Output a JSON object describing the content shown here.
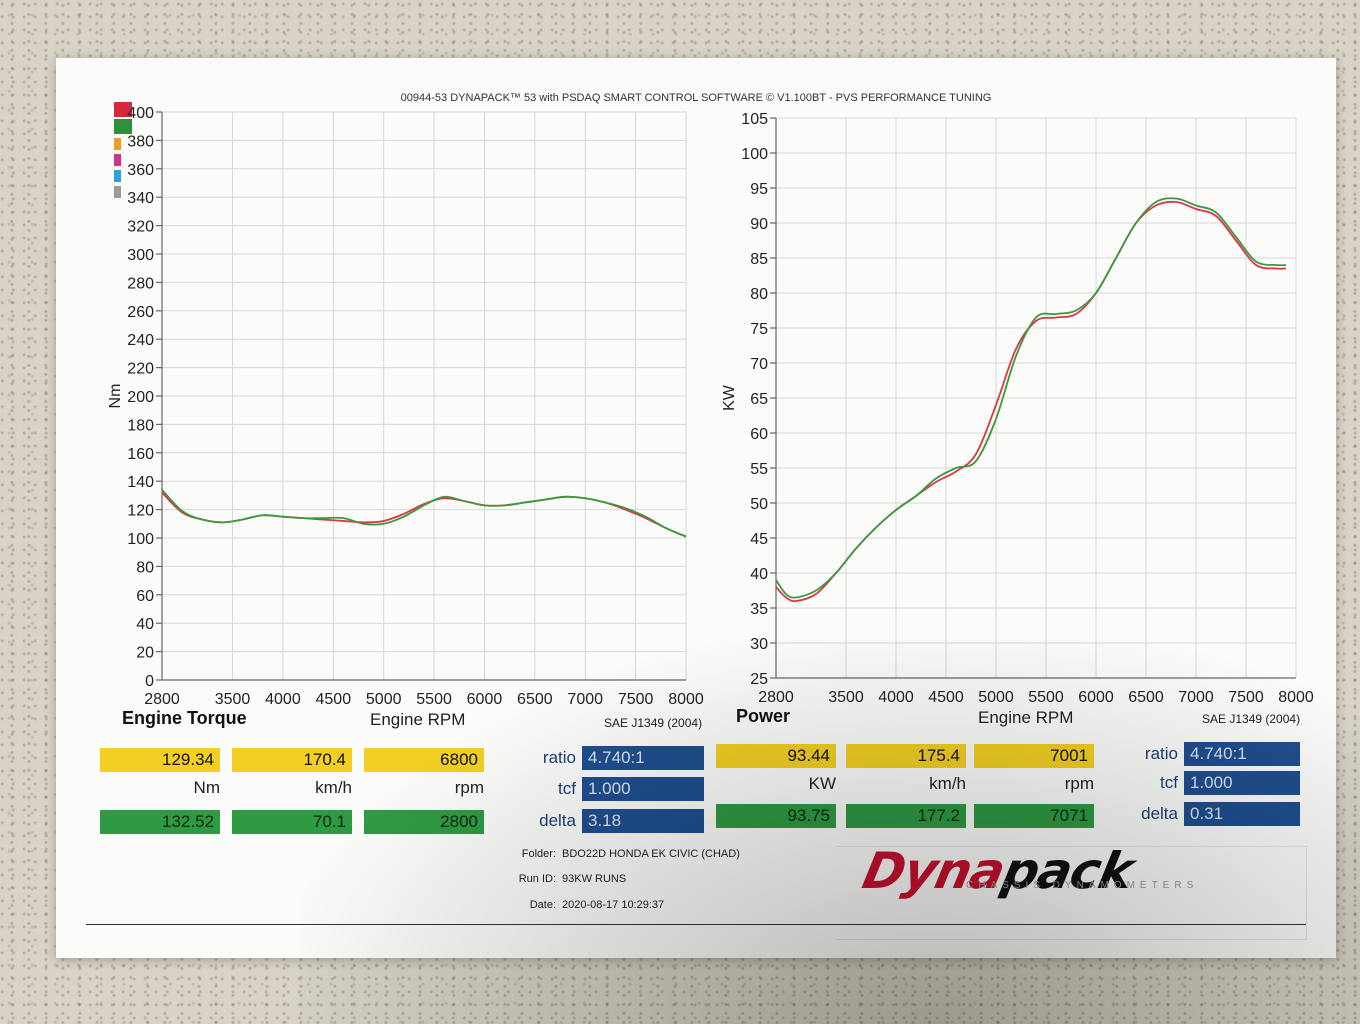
{
  "header": "00944-53 DYNAPACK™ 53 with PSDAQ SMART CONTROL SOFTWARE © V1.100BT - PVS PERFORMANCE TUNING",
  "colors": {
    "run1": "#e0344a",
    "run2": "#3a9a3e",
    "yellow": "#f2cf22",
    "green": "#2e9a43",
    "blue": "#1f4e8f"
  },
  "legend_swatches": [
    "#d6283f",
    "#2f8f3a",
    "#f09a2a",
    "#c7348a",
    "#2aa6d6",
    "#9a9a9a"
  ],
  "chart_data": [
    {
      "type": "line",
      "title": "Engine Torque",
      "xlabel": "Engine RPM",
      "ylabel": "Nm",
      "note": "SAE J1349 (2004)",
      "xlim": [
        2800,
        8000
      ],
      "ylim": [
        0,
        400
      ],
      "xticks": [
        "2800",
        "3500",
        "4000",
        "4500",
        "5000",
        "5500",
        "6000",
        "6500",
        "7000",
        "7500",
        "8000"
      ],
      "yticks": [
        "0",
        "20",
        "40",
        "60",
        "80",
        "100",
        "120",
        "140",
        "160",
        "180",
        "200",
        "220",
        "240",
        "260",
        "280",
        "300",
        "320",
        "340",
        "360",
        "380",
        "400"
      ],
      "grid": true,
      "series": [
        {
          "color": "#e0344a",
          "x": [
            2800,
            3000,
            3200,
            3400,
            3600,
            3800,
            4000,
            4200,
            4400,
            4600,
            4800,
            5000,
            5200,
            5400,
            5600,
            5800,
            6000,
            6200,
            6400,
            6600,
            6800,
            7000,
            7200,
            7400,
            7600,
            7800,
            8000
          ],
          "y": [
            132,
            118,
            113,
            111,
            113,
            116,
            115,
            114,
            113,
            112,
            111,
            112,
            117,
            124,
            128,
            126,
            123,
            123,
            125,
            127,
            129,
            128,
            125,
            120,
            114,
            107,
            101
          ]
        },
        {
          "color": "#3a9a3e",
          "x": [
            2800,
            3000,
            3200,
            3400,
            3600,
            3800,
            4000,
            4200,
            4400,
            4600,
            4800,
            5000,
            5200,
            5400,
            5600,
            5800,
            6000,
            6200,
            6400,
            6600,
            6800,
            7000,
            7200,
            7400,
            7600,
            7800,
            8000
          ],
          "y": [
            134,
            119,
            113,
            111,
            113,
            116,
            115,
            114,
            114,
            114,
            110,
            110,
            115,
            123,
            129,
            126,
            123,
            123,
            125,
            127,
            129,
            128,
            125,
            121,
            115,
            107,
            101
          ]
        }
      ]
    },
    {
      "type": "line",
      "title": "Power",
      "xlabel": "Engine RPM",
      "ylabel": "KW",
      "note": "SAE J1349 (2004)",
      "xlim": [
        2800,
        8000
      ],
      "ylim": [
        25,
        105
      ],
      "xticks": [
        "2800",
        "3500",
        "4000",
        "4500",
        "5000",
        "5500",
        "6000",
        "6500",
        "7000",
        "7500",
        "8000"
      ],
      "yticks": [
        "25",
        "30",
        "35",
        "40",
        "45",
        "50",
        "55",
        "60",
        "65",
        "70",
        "75",
        "80",
        "85",
        "90",
        "95",
        "100",
        "105"
      ],
      "grid": true,
      "series": [
        {
          "color": "#e0344a",
          "x": [
            2800,
            2900,
            3000,
            3200,
            3400,
            3600,
            3800,
            4000,
            4200,
            4400,
            4600,
            4800,
            5000,
            5200,
            5400,
            5600,
            5800,
            6000,
            6200,
            6400,
            6600,
            6800,
            7000,
            7200,
            7400,
            7600,
            7800,
            7900
          ],
          "y": [
            38,
            36.5,
            36,
            37,
            40,
            43.5,
            46.5,
            49,
            51,
            53,
            54.5,
            57,
            64,
            72,
            76,
            76.5,
            77,
            80,
            85,
            90,
            92.5,
            93,
            92,
            91,
            87.5,
            84,
            83.5,
            83.5
          ]
        },
        {
          "color": "#3a9a3e",
          "x": [
            2800,
            2900,
            3000,
            3200,
            3400,
            3600,
            3800,
            4000,
            4200,
            4400,
            4600,
            4800,
            5000,
            5200,
            5400,
            5600,
            5800,
            6000,
            6200,
            6400,
            6600,
            6800,
            7000,
            7200,
            7400,
            7600,
            7800,
            7900
          ],
          "y": [
            39,
            37,
            36.5,
            37.5,
            40,
            43.5,
            46.5,
            49,
            51,
            53.5,
            55,
            56,
            62,
            71,
            76.5,
            77,
            77.5,
            80,
            85,
            90,
            93,
            93.5,
            92.5,
            91.5,
            88,
            84.5,
            84,
            84
          ]
        }
      ]
    }
  ],
  "torque_panel": {
    "values_top": [
      "129.34",
      "170.4",
      "6800"
    ],
    "units": [
      "Nm",
      "km/h",
      "rpm"
    ],
    "values_bottom": [
      "132.52",
      "70.1",
      "2800"
    ],
    "ratio_label": "ratio",
    "ratio": "4.740:1",
    "tcf_label": "tcf",
    "tcf": "1.000",
    "delta_label": "delta",
    "delta": "3.18"
  },
  "power_panel": {
    "values_top": [
      "93.44",
      "175.4",
      "7001"
    ],
    "units": [
      "KW",
      "km/h",
      "rpm"
    ],
    "values_bottom": [
      "93.75",
      "177.2",
      "7071"
    ],
    "ratio_label": "ratio",
    "ratio": "4.740:1",
    "tcf_label": "tcf",
    "tcf": "1.000",
    "delta_label": "delta",
    "delta": "0.31"
  },
  "info": {
    "folder_label": "Folder:",
    "folder": "BDO22D HONDA EK CIVIC (CHAD)",
    "run_label": "Run ID:",
    "run": "93KW RUNS",
    "date_label": "Date:",
    "date": "2020-08-17 10:29:37"
  },
  "logo": {
    "part1": "Dyna",
    "part2": "pack",
    "sub": "CHASSIS DYNAMOMETERS"
  }
}
